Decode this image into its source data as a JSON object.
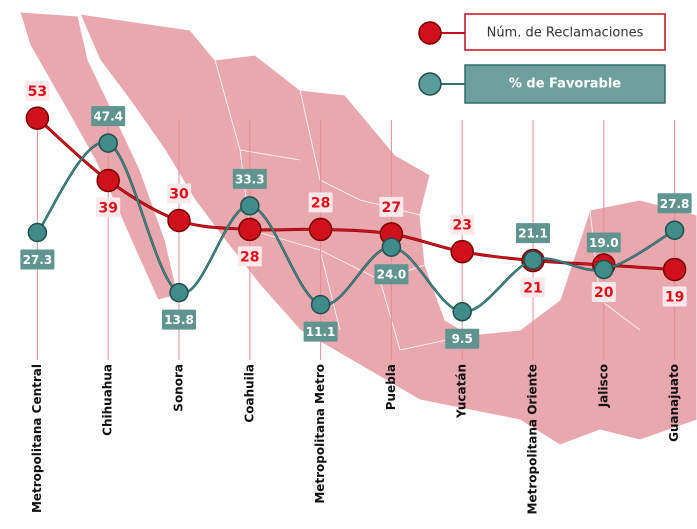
{
  "chart_data": {
    "type": "line",
    "categories": [
      "Metropolitana Central",
      "Chihuahua",
      "Sonora",
      "Coahuila",
      "Metropolitana Metro",
      "Puebla",
      "Yucatán",
      "Metropolitana Oriente",
      "Jalisco",
      "Guanajuato"
    ],
    "series": [
      {
        "name": "Núm. de Reclamaciones",
        "color": "#d0101a",
        "values": [
          53,
          39,
          30,
          28,
          28,
          27,
          23,
          21,
          20,
          19
        ]
      },
      {
        "name": "% de Favorable",
        "color": "#3f8c8a",
        "values": [
          27.3,
          47.4,
          13.8,
          33.3,
          11.1,
          24.0,
          9.5,
          21.1,
          19.0,
          27.8
        ],
        "value_labels": [
          "27.3",
          "47.4",
          "13.8",
          "33.3",
          "11.1",
          "24.0",
          "9.5",
          "21.1",
          "19.0",
          "27.8"
        ]
      }
    ],
    "ylim": [
      0,
      60
    ]
  }
}
